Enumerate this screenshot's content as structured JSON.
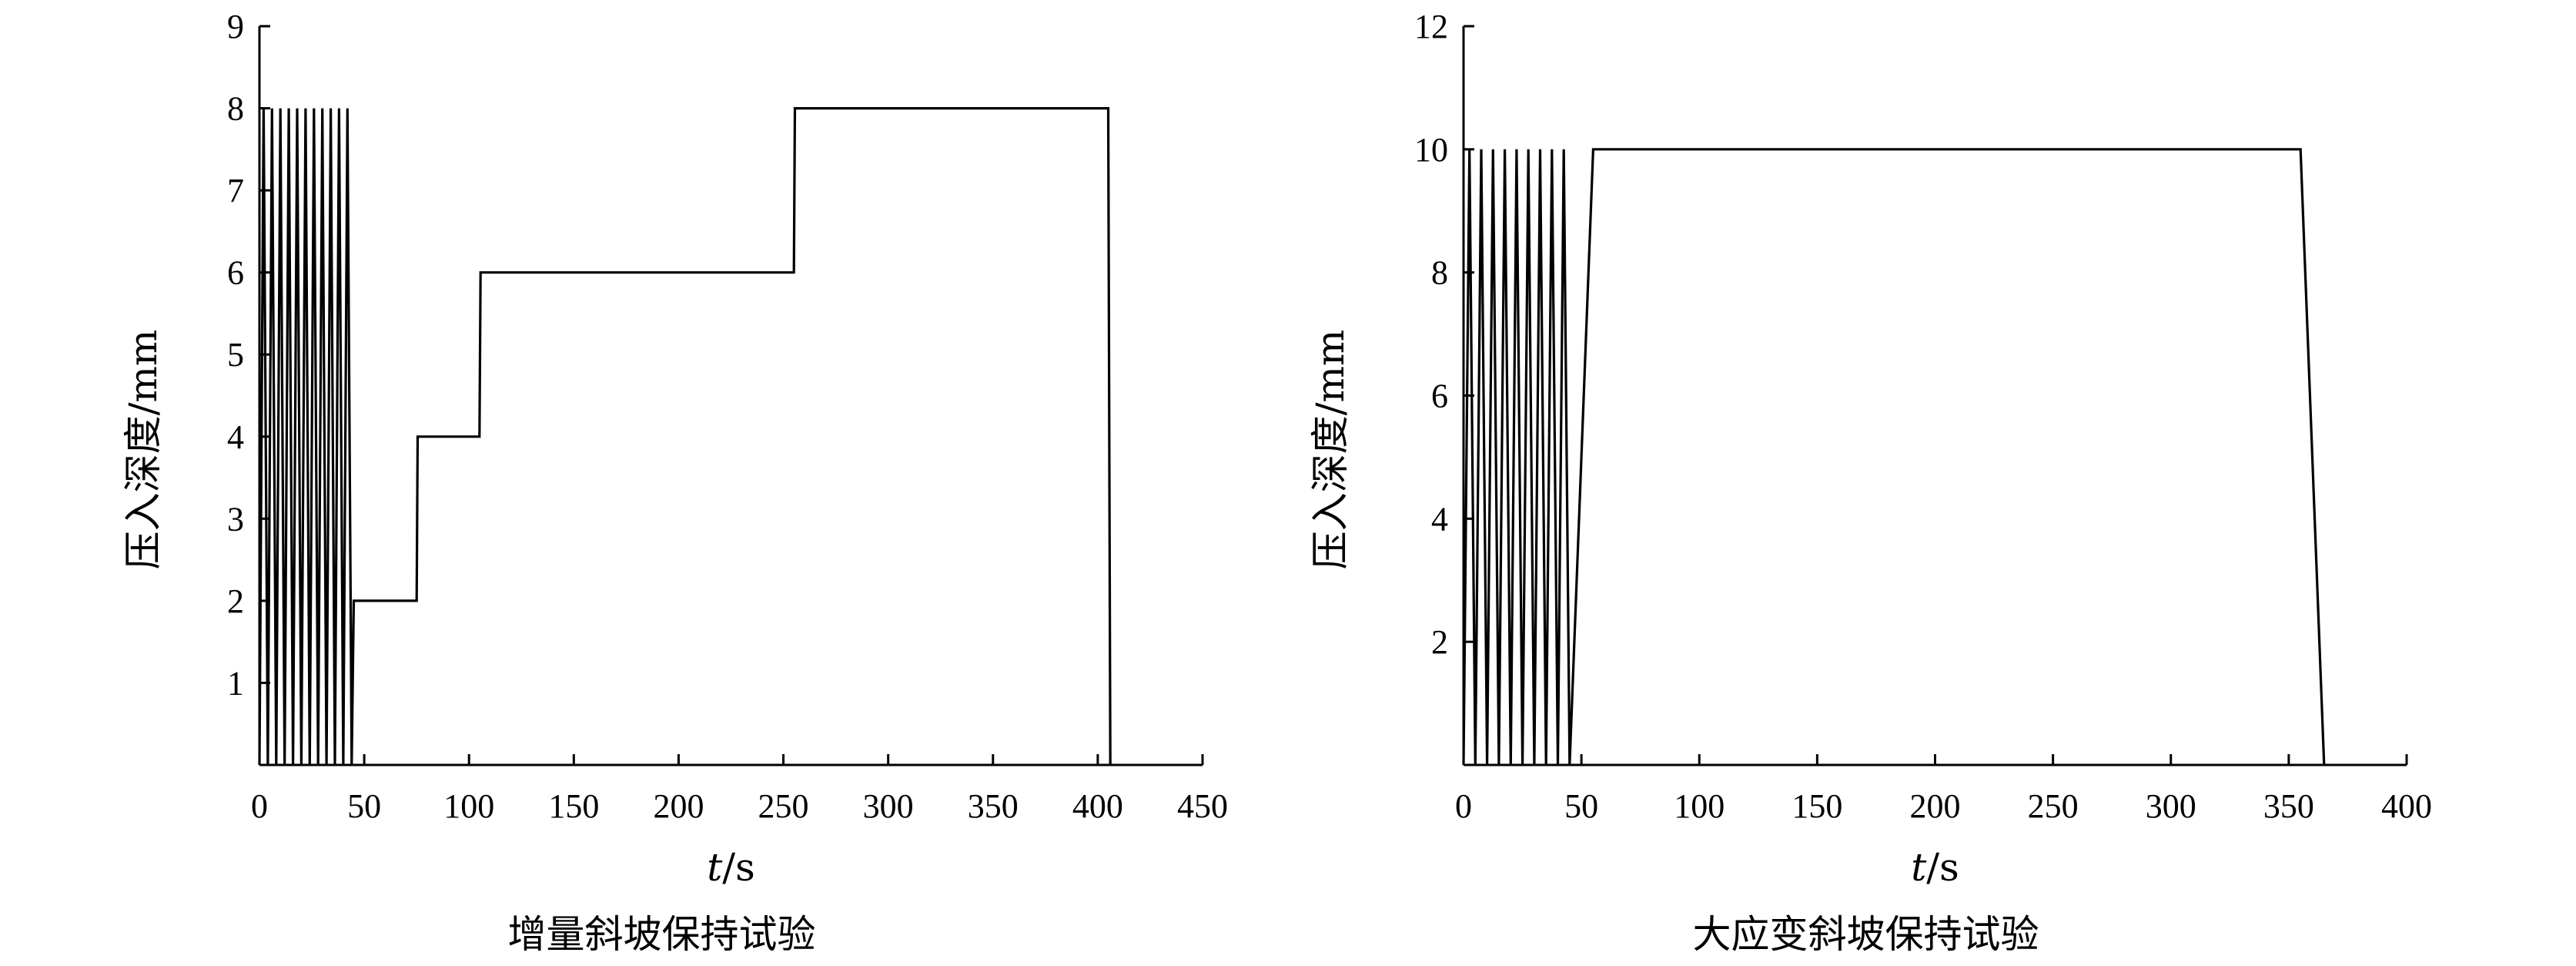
{
  "chart_data": [
    {
      "type": "line",
      "caption": "增量斜坡保持试验",
      "xlabel_italic": "t",
      "xlabel_unit": "/s",
      "ylabel": "压入深度/mm",
      "xlim": [
        0,
        450
      ],
      "ylim": [
        0,
        9
      ],
      "xticks": [
        0,
        50,
        100,
        150,
        200,
        250,
        300,
        350,
        400,
        450
      ],
      "yticks": [
        1,
        2,
        3,
        4,
        5,
        6,
        7,
        8,
        9
      ],
      "x_tick_labels": [
        "0",
        "50",
        "100",
        "150",
        "200",
        "250",
        "300",
        "350",
        "400",
        "450"
      ],
      "y_tick_labels": [
        "1",
        "2",
        "3",
        "4",
        "5",
        "6",
        "7",
        "8",
        "9"
      ],
      "series": [
        {
          "x": [
            0,
            2,
            4,
            6,
            8,
            10,
            12,
            14,
            16,
            18,
            20,
            22,
            24,
            26,
            28,
            30,
            32,
            34,
            36,
            38,
            40,
            42,
            44,
            45,
            75,
            75.5,
            105,
            105.5,
            255,
            255.5,
            405,
            406
          ],
          "y": [
            0,
            8,
            0,
            8,
            0,
            8,
            0,
            8,
            0,
            8,
            0,
            8,
            0,
            8,
            0,
            8,
            0,
            8,
            0,
            8,
            0,
            8,
            0,
            2,
            2,
            4,
            4,
            6,
            6,
            8,
            8,
            0
          ]
        }
      ]
    },
    {
      "type": "line",
      "caption": "大应变斜坡保持试验",
      "xlabel_italic": "t",
      "xlabel_unit": "/s",
      "ylabel": "压入深度/mm",
      "xlim": [
        0,
        400
      ],
      "ylim": [
        0,
        12
      ],
      "xticks": [
        0,
        50,
        100,
        150,
        200,
        250,
        300,
        350,
        400
      ],
      "yticks": [
        2,
        4,
        6,
        8,
        10,
        12
      ],
      "x_tick_labels": [
        "0",
        "50",
        "100",
        "150",
        "200",
        "250",
        "300",
        "350",
        "400"
      ],
      "y_tick_labels": [
        "2",
        "4",
        "6",
        "8",
        "10",
        "12"
      ],
      "series": [
        {
          "x": [
            0,
            2.5,
            5,
            7.5,
            10,
            12.5,
            15,
            17.5,
            20,
            22.5,
            25,
            27.5,
            30,
            32.5,
            35,
            37.5,
            40,
            42.5,
            45,
            55,
            355,
            365
          ],
          "y": [
            0,
            10,
            0,
            10,
            0,
            10,
            0,
            10,
            0,
            10,
            0,
            10,
            0,
            10,
            0,
            10,
            0,
            10,
            0,
            10,
            10,
            0
          ]
        }
      ]
    }
  ]
}
